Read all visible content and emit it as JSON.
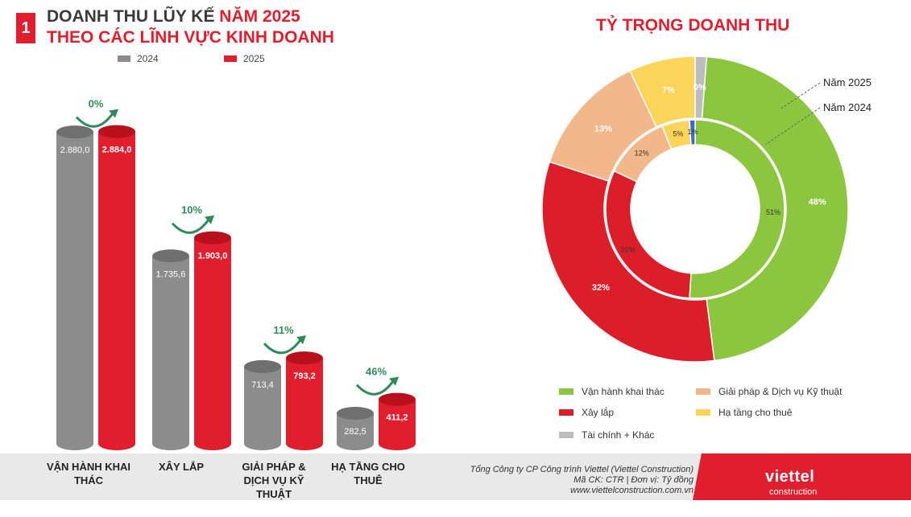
{
  "header": {
    "badge": "1",
    "title_line1_dark": "DOANH THU LŨY KẾ ",
    "title_line1_red": "NĂM 2025",
    "title_line2": "THEO CÁC LĨNH VỰC KINH DOANH"
  },
  "colors": {
    "y2024": "#8c8c8c",
    "y2025": "#e01e2d",
    "growth": "#2e8b57",
    "green": "#8cc63f",
    "red": "#dc1e2b",
    "orange": "#f2b88c",
    "yellow": "#fbd45a",
    "grey": "#bdbdbd",
    "blue": "#3b6cc9"
  },
  "donut_title": "TỶ TRỌNG DOANH THU",
  "donut_callouts": {
    "outer": "Năm 2025",
    "inner": "Năm 2024"
  },
  "legend_donut": [
    {
      "label": "Vận hành khai thác",
      "color": "#8cc63f"
    },
    {
      "label": "Giải pháp & Dịch vụ Kỹ thuật",
      "color": "#f2b88c"
    },
    {
      "label": "Xây lắp",
      "color": "#dc1e2b"
    },
    {
      "label": "Hạ tầng cho thuê",
      "color": "#fbd45a"
    },
    {
      "label": "Tài chính + Khác",
      "color": "#bdbdbd"
    }
  ],
  "footer": {
    "line1": "Tổng Công ty CP Công trình Viettel (Viettel Construction)",
    "line2": "Mã CK: CTR | Đơn vị: Tỷ đồng",
    "line3": "www.viettelconstruction.com.vn",
    "brand": "viettel",
    "brand_sub": "construction"
  },
  "chart_data": [
    {
      "type": "bar",
      "categories": [
        "VẬN HÀNH KHAI THÁC",
        "XÂY LẮP",
        "GIẢI PHÁP & DỊCH VỤ KỸ THUẬT",
        "HẠ TẦNG CHO THUÊ"
      ],
      "series": [
        {
          "name": "2024",
          "values": [
            2880.0,
            1735.6,
            713.4,
            282.5
          ],
          "labels": [
            "2.880,0",
            "1.735,6",
            "713,4",
            "282,5"
          ]
        },
        {
          "name": "2025",
          "values": [
            2884.0,
            1903.0,
            793.2,
            411.2
          ],
          "labels": [
            "2.884,0",
            "1.903,0",
            "793,2",
            "411,2"
          ]
        }
      ],
      "growth": [
        "0%",
        "10%",
        "11%",
        "46%"
      ],
      "ylim": [
        0,
        3000
      ]
    },
    {
      "type": "pie",
      "title": "TỶ TRỌNG DOANH THU",
      "categories": [
        "Vận hành khai thác",
        "Xây lắp",
        "Giải pháp & Dịch vụ Kỹ thuật",
        "Hạ tầng cho thuê",
        "Tài chính + Khác"
      ],
      "series": [
        {
          "name": "Năm 2025",
          "values": [
            48,
            32,
            13,
            7,
            0
          ],
          "labels": [
            "48%",
            "32%",
            "13%",
            "7%",
            "0%"
          ]
        },
        {
          "name": "Năm 2024",
          "values": [
            51,
            31,
            12,
            5,
            1
          ],
          "labels": [
            "51%",
            "31%",
            "12%",
            "5%",
            "1%"
          ]
        }
      ]
    }
  ]
}
